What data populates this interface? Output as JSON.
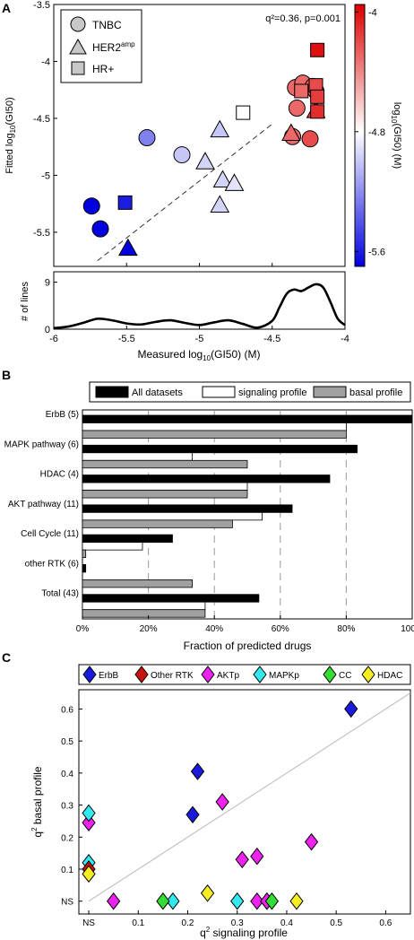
{
  "panel_a": {
    "letter": "A",
    "annotation": "q²=0.36, p=0.001",
    "legend": [
      {
        "shape": "circle",
        "label": "TNBC",
        "sup": ""
      },
      {
        "shape": "triangle",
        "label": "HER2",
        "sup": "amp"
      },
      {
        "shape": "square",
        "label": "HR+",
        "sup": ""
      }
    ],
    "colorbar": {
      "min": -5.7,
      "max": -3.95,
      "mid": -4.8,
      "tick_labels": [
        "-4",
        "-4.8",
        "-5.6"
      ],
      "tick_values": [
        -4,
        -4.8,
        -5.6
      ],
      "label": "log10(GI50) (M)",
      "colors": {
        "low": "#0000dd",
        "mid": "#ffffff",
        "high": "#dd0000"
      }
    },
    "ylabel": "Fitted log10(GI50)",
    "xlabel": "Measured log10(GI50) (M)",
    "density_ylabel": "# of lines",
    "chart_data": {
      "type": "scatter",
      "xlim": [
        -6,
        -4
      ],
      "ylim": [
        -5.8,
        -3.5
      ],
      "x_ticks": [
        -6,
        -5.5,
        -5,
        -4.5,
        -4
      ],
      "x_tick_labels": [
        "-6",
        "-5.5",
        "-5",
        "-4.5",
        "-4"
      ],
      "y_ticks": [
        -5.5,
        -5,
        -4.5,
        -4,
        -3.5
      ],
      "y_tick_labels": [
        "-5.5",
        "-5",
        "-4.5",
        "-4",
        "-3.5"
      ],
      "fit_line": {
        "x": [
          -5.7,
          -4.5
        ],
        "y": [
          -5.75,
          -4.55
        ]
      },
      "points": [
        {
          "shape": "circle",
          "x": -5.74,
          "y": -5.27,
          "c": -5.7
        },
        {
          "shape": "circle",
          "x": -5.68,
          "y": -5.47,
          "c": -5.7
        },
        {
          "shape": "circle",
          "x": -5.36,
          "y": -4.67,
          "c": -5.25
        },
        {
          "shape": "circle",
          "x": -5.12,
          "y": -4.82,
          "c": -5.0
        },
        {
          "shape": "circle",
          "x": -4.34,
          "y": -4.23,
          "c": -4.3
        },
        {
          "shape": "circle",
          "x": -4.29,
          "y": -4.19,
          "c": -4.3
        },
        {
          "shape": "circle",
          "x": -4.22,
          "y": -4.22,
          "c": -4.25
        },
        {
          "shape": "circle",
          "x": -4.33,
          "y": -4.41,
          "c": -4.3
        },
        {
          "shape": "circle",
          "x": -4.2,
          "y": -4.26,
          "c": -4.2
        },
        {
          "shape": "circle",
          "x": -4.36,
          "y": -4.66,
          "c": -4.3
        },
        {
          "shape": "circle",
          "x": -4.24,
          "y": -4.68,
          "c": -4.2
        },
        {
          "shape": "triangle",
          "x": -5.49,
          "y": -5.64,
          "c": -5.7
        },
        {
          "shape": "triangle",
          "x": -4.96,
          "y": -4.88,
          "c": -4.95
        },
        {
          "shape": "triangle",
          "x": -4.86,
          "y": -4.6,
          "c": -5.0
        },
        {
          "shape": "triangle",
          "x": -4.84,
          "y": -5.04,
          "c": -4.95
        },
        {
          "shape": "triangle",
          "x": -4.76,
          "y": -5.07,
          "c": -4.9
        },
        {
          "shape": "triangle",
          "x": -4.86,
          "y": -5.26,
          "c": -4.95
        },
        {
          "shape": "triangle",
          "x": -4.37,
          "y": -4.63,
          "c": -4.3
        },
        {
          "shape": "triangle",
          "x": -4.2,
          "y": -4.43,
          "c": -4.15
        },
        {
          "shape": "square",
          "x": -5.51,
          "y": -5.24,
          "c": -5.6
        },
        {
          "shape": "square",
          "x": -4.7,
          "y": -4.45,
          "c": -4.8
        },
        {
          "shape": "square",
          "x": -4.19,
          "y": -3.9,
          "c": -4.0
        },
        {
          "shape": "square",
          "x": -4.3,
          "y": -4.26,
          "c": -4.3
        },
        {
          "shape": "square",
          "x": -4.2,
          "y": -4.21,
          "c": -4.2
        },
        {
          "shape": "square",
          "x": -4.19,
          "y": -4.31,
          "c": -4.15
        },
        {
          "shape": "square",
          "x": -4.19,
          "y": -4.44,
          "c": -4.1
        }
      ]
    },
    "density": {
      "ylim": [
        0,
        11
      ],
      "y_ticks": [
        0,
        9
      ],
      "y_tick_labels": [
        "0",
        "9"
      ],
      "x": [
        -6,
        -5.9,
        -5.8,
        -5.7,
        -5.6,
        -5.5,
        -5.4,
        -5.3,
        -5.2,
        -5.1,
        -5.0,
        -4.9,
        -4.8,
        -4.7,
        -4.6,
        -4.5,
        -4.45,
        -4.4,
        -4.35,
        -4.3,
        -4.25,
        -4.2,
        -4.15,
        -4.1,
        -4.05,
        -4.0
      ],
      "y": [
        0.2,
        0.5,
        1.2,
        2.0,
        1.7,
        1.1,
        0.9,
        1.4,
        1.7,
        1.2,
        0.8,
        1.3,
        1.7,
        1.0,
        0.3,
        1.6,
        4.2,
        6.8,
        7.6,
        7.3,
        8.0,
        8.6,
        8.0,
        5.2,
        2.0,
        0.8
      ]
    }
  },
  "panel_b": {
    "letter": "B",
    "legend": [
      {
        "label": "All datasets",
        "color": "#000000"
      },
      {
        "label": "signaling profile",
        "color": "#ffffff"
      },
      {
        "label": "basal profile",
        "color": "#a0a0a0"
      }
    ],
    "xlabel": "Fraction of predicted drugs",
    "chart_data": {
      "type": "bar",
      "orientation": "horizontal",
      "xlim": [
        0,
        100
      ],
      "x_ticks": [
        0,
        20,
        40,
        60,
        80,
        100
      ],
      "x_tick_labels": [
        "0%",
        "20%",
        "40%",
        "60%",
        "80%",
        "100%"
      ],
      "gridlines": [
        20,
        40,
        60,
        80
      ],
      "categories": [
        "ErbB (5)",
        "MAPK pathway (6)",
        "HDAC (4)",
        "AKT pathway (11)",
        "Cell Cycle (11)",
        "other RTK (6)",
        "Total (43)"
      ],
      "series": [
        {
          "name": "All datasets",
          "values": [
            100,
            83.3,
            75,
            63.6,
            27.3,
            1,
            53.5
          ]
        },
        {
          "name": "signaling profile",
          "values": [
            80,
            33.3,
            50,
            54.5,
            18.2,
            0,
            37.2
          ]
        },
        {
          "name": "basal profile",
          "values": [
            80,
            50,
            50,
            45.5,
            1,
            33.3,
            37.2
          ]
        }
      ]
    }
  },
  "panel_c": {
    "letter": "C",
    "legend": [
      {
        "label": "ErbB",
        "color": "#1a1add"
      },
      {
        "label": "Other RTK",
        "color": "#cc1111"
      },
      {
        "label": "AKTp",
        "color": "#ee22ee"
      },
      {
        "label": "MAPKp",
        "color": "#33e8ee"
      },
      {
        "label": "CC",
        "color": "#33dd33"
      },
      {
        "label": "HDAC",
        "color": "#f5ee22"
      }
    ],
    "xlabel": "q² signaling profile",
    "ylabel": "q² basal profile",
    "chart_data": {
      "type": "scatter",
      "xlim": [
        -0.02,
        0.65
      ],
      "ylim": [
        -0.04,
        0.66
      ],
      "x_ticks": [
        0,
        0.1,
        0.2,
        0.3,
        0.4,
        0.5,
        0.6
      ],
      "x_tick_labels": [
        "NS",
        "0.1",
        "0.2",
        "0.3",
        "0.4",
        "0.5",
        "0.6"
      ],
      "y_ticks": [
        0,
        0.1,
        0.2,
        0.3,
        0.4,
        0.5,
        0.6
      ],
      "y_tick_labels": [
        "NS",
        "0.1",
        "0.2",
        "0.3",
        "0.4",
        "0.5",
        "0.6"
      ],
      "diagonal": [
        [
          0,
          0
        ],
        [
          0.65,
          0.65
        ]
      ],
      "points": [
        {
          "group": "ErbB",
          "x": 0.53,
          "y": 0.6
        },
        {
          "group": "ErbB",
          "x": 0.22,
          "y": 0.405
        },
        {
          "group": "ErbB",
          "x": 0.21,
          "y": 0.27
        },
        {
          "group": "ErbB",
          "x": 0.36,
          "y": 0.0
        },
        {
          "group": "AKTp",
          "x": 0.27,
          "y": 0.31
        },
        {
          "group": "AKTp",
          "x": 0.45,
          "y": 0.185
        },
        {
          "group": "AKTp",
          "x": 0.34,
          "y": 0.14
        },
        {
          "group": "AKTp",
          "x": 0.31,
          "y": 0.13
        },
        {
          "group": "AKTp",
          "x": 0.0,
          "y": 0.245
        },
        {
          "group": "AKTp",
          "x": 0.05,
          "y": 0.0
        },
        {
          "group": "AKTp",
          "x": 0.34,
          "y": 0.0
        },
        {
          "group": "AKTp",
          "x": 0.36,
          "y": 0.0
        },
        {
          "group": "MAPKp",
          "x": 0.0,
          "y": 0.275
        },
        {
          "group": "MAPKp",
          "x": 0.0,
          "y": 0.12
        },
        {
          "group": "MAPKp",
          "x": 0.17,
          "y": 0.0
        },
        {
          "group": "MAPKp",
          "x": 0.3,
          "y": 0.0
        },
        {
          "group": "CC",
          "x": 0.15,
          "y": 0.0
        },
        {
          "group": "CC",
          "x": 0.37,
          "y": 0.0
        },
        {
          "group": "Other RTK",
          "x": 0.0,
          "y": 0.1
        },
        {
          "group": "HDAC",
          "x": 0.0,
          "y": 0.085
        },
        {
          "group": "HDAC",
          "x": 0.24,
          "y": 0.025
        },
        {
          "group": "HDAC",
          "x": 0.42,
          "y": 0.0
        }
      ]
    }
  }
}
